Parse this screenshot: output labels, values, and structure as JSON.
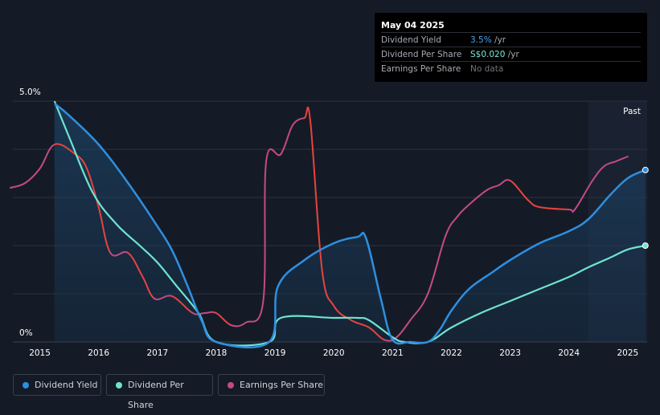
{
  "tooltip": {
    "date": "May 04 2025",
    "rows": [
      {
        "label": "Dividend Yield",
        "value": "3.5%",
        "unit": " /yr"
      },
      {
        "label": "Dividend Per Share",
        "value": "S$0.020",
        "unit": " /yr"
      },
      {
        "label": "Earnings Per Share",
        "value": "No data",
        "unit": ""
      }
    ]
  },
  "past_label": "Past",
  "legend": [
    {
      "label": "Dividend Yield",
      "color": "#2e8fe0"
    },
    {
      "label": "Dividend Per Share",
      "color": "#6fe3cf"
    },
    {
      "label": "Earnings Per Share",
      "color": "#c44a86"
    }
  ],
  "chart_data": {
    "type": "line",
    "x_ticks": [
      "2015",
      "2016",
      "2017",
      "2018",
      "2019",
      "2020",
      "2021",
      "2022",
      "2023",
      "2024",
      "2025"
    ],
    "y_tick_labels": [
      "5.0%",
      "0%"
    ],
    "ylim": [
      0,
      5.0
    ],
    "xlim": [
      2014.5,
      2025.33
    ],
    "grid": true,
    "legend_position": "bottom-left",
    "past_region_start": 2024.33,
    "colors": {
      "dividend_yield": "#2e8fe0",
      "dividend_per_share": "#6fe3cf",
      "eps_up": "#c44a86",
      "eps_down": "#e8433f"
    },
    "series": [
      {
        "name": "Dividend Yield",
        "points": [
          [
            2015.25,
            4.95
          ],
          [
            2015.5,
            4.7
          ],
          [
            2016.0,
            4.1
          ],
          [
            2016.5,
            3.3
          ],
          [
            2017.0,
            2.4
          ],
          [
            2017.25,
            1.9
          ],
          [
            2017.5,
            1.2
          ],
          [
            2017.75,
            0.45
          ],
          [
            2018.0,
            0.0
          ],
          [
            2018.9,
            0.0
          ],
          [
            2019.05,
            1.15
          ],
          [
            2019.5,
            1.7
          ],
          [
            2020.0,
            2.05
          ],
          [
            2020.4,
            2.18
          ],
          [
            2020.55,
            2.15
          ],
          [
            2020.8,
            0.9
          ],
          [
            2021.0,
            0.05
          ],
          [
            2021.3,
            0.0
          ],
          [
            2021.6,
            0.0
          ],
          [
            2021.8,
            0.25
          ],
          [
            2022.0,
            0.65
          ],
          [
            2022.3,
            1.1
          ],
          [
            2022.7,
            1.45
          ],
          [
            2023.0,
            1.7
          ],
          [
            2023.5,
            2.05
          ],
          [
            2024.0,
            2.3
          ],
          [
            2024.33,
            2.55
          ],
          [
            2024.7,
            3.05
          ],
          [
            2025.0,
            3.4
          ],
          [
            2025.3,
            3.57
          ]
        ]
      },
      {
        "name": "Dividend Per Share",
        "points": [
          [
            2015.25,
            5.0
          ],
          [
            2015.5,
            4.25
          ],
          [
            2015.9,
            3.1
          ],
          [
            2016.3,
            2.45
          ],
          [
            2016.7,
            2.0
          ],
          [
            2017.0,
            1.65
          ],
          [
            2017.3,
            1.2
          ],
          [
            2017.7,
            0.6
          ],
          [
            2018.0,
            0.0
          ],
          [
            2018.9,
            0.0
          ],
          [
            2019.1,
            0.5
          ],
          [
            2020.0,
            0.5
          ],
          [
            2020.4,
            0.5
          ],
          [
            2020.6,
            0.45
          ],
          [
            2021.0,
            0.1
          ],
          [
            2021.2,
            0.0
          ],
          [
            2021.6,
            0.0
          ],
          [
            2022.0,
            0.3
          ],
          [
            2022.5,
            0.6
          ],
          [
            2023.0,
            0.85
          ],
          [
            2023.5,
            1.1
          ],
          [
            2024.0,
            1.35
          ],
          [
            2024.33,
            1.55
          ],
          [
            2024.7,
            1.75
          ],
          [
            2025.0,
            1.92
          ],
          [
            2025.3,
            2.0
          ]
        ]
      },
      {
        "name": "Earnings Per Share",
        "points": [
          [
            2014.5,
            3.2
          ],
          [
            2014.75,
            3.3
          ],
          [
            2015.0,
            3.6
          ],
          [
            2015.25,
            4.1
          ],
          [
            2015.6,
            3.9
          ],
          [
            2015.8,
            3.6
          ],
          [
            2016.0,
            2.8
          ],
          [
            2016.2,
            1.85
          ],
          [
            2016.5,
            1.85
          ],
          [
            2016.75,
            1.35
          ],
          [
            2016.95,
            0.9
          ],
          [
            2017.25,
            0.95
          ],
          [
            2017.6,
            0.6
          ],
          [
            2017.8,
            0.6
          ],
          [
            2018.0,
            0.6
          ],
          [
            2018.25,
            0.35
          ],
          [
            2018.5,
            0.4
          ],
          [
            2018.8,
            0.85
          ],
          [
            2018.85,
            3.75
          ],
          [
            2019.1,
            3.9
          ],
          [
            2019.3,
            4.5
          ],
          [
            2019.5,
            4.65
          ],
          [
            2019.6,
            4.6
          ],
          [
            2019.8,
            1.5
          ],
          [
            2020.0,
            0.75
          ],
          [
            2020.3,
            0.45
          ],
          [
            2020.6,
            0.3
          ],
          [
            2020.85,
            0.05
          ],
          [
            2021.05,
            0.08
          ],
          [
            2021.3,
            0.45
          ],
          [
            2021.6,
            1.0
          ],
          [
            2021.9,
            2.2
          ],
          [
            2022.1,
            2.6
          ],
          [
            2022.3,
            2.85
          ],
          [
            2022.6,
            3.15
          ],
          [
            2022.8,
            3.25
          ],
          [
            2023.0,
            3.35
          ],
          [
            2023.3,
            2.95
          ],
          [
            2023.5,
            2.8
          ],
          [
            2024.0,
            2.75
          ],
          [
            2024.1,
            2.75
          ],
          [
            2024.4,
            3.35
          ],
          [
            2024.6,
            3.65
          ],
          [
            2024.8,
            3.75
          ],
          [
            2025.0,
            3.85
          ]
        ]
      }
    ]
  }
}
